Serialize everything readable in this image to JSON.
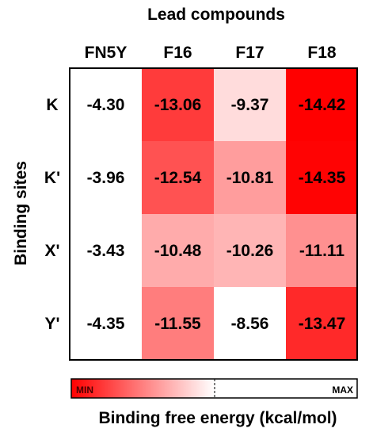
{
  "chart_data": {
    "type": "heatmap",
    "title": "Lead compounds",
    "xlabel": "Lead compounds",
    "ylabel": "Binding sites",
    "columns": [
      "FN5Y",
      "F16",
      "F17",
      "F18"
    ],
    "rows": [
      "K",
      "K'",
      "X'",
      "Y'"
    ],
    "values": [
      [
        -4.3,
        -13.06,
        -9.37,
        -14.42
      ],
      [
        -3.96,
        -12.54,
        -10.81,
        -14.35
      ],
      [
        -3.43,
        -10.48,
        -10.26,
        -11.11
      ],
      [
        -4.35,
        -11.55,
        -8.56,
        -13.47
      ]
    ],
    "value_labels": [
      [
        "-4.30",
        "-13.06",
        "-9.37",
        "-14.42"
      ],
      [
        "-3.96",
        "-12.54",
        "-10.81",
        "-14.35"
      ],
      [
        "-3.43",
        "-10.48",
        "-10.26",
        "-11.11"
      ],
      [
        "-4.35",
        "-11.55",
        "-8.56",
        "-13.47"
      ]
    ],
    "colored_columns": [
      "F16",
      "F17",
      "F18"
    ],
    "color_scale": {
      "min_label": "MIN",
      "max_label": "MAX",
      "min_color": "#ff0000",
      "max_color": "#ffffff",
      "legend_title": "Binding free energy (kcal/mol)"
    }
  }
}
